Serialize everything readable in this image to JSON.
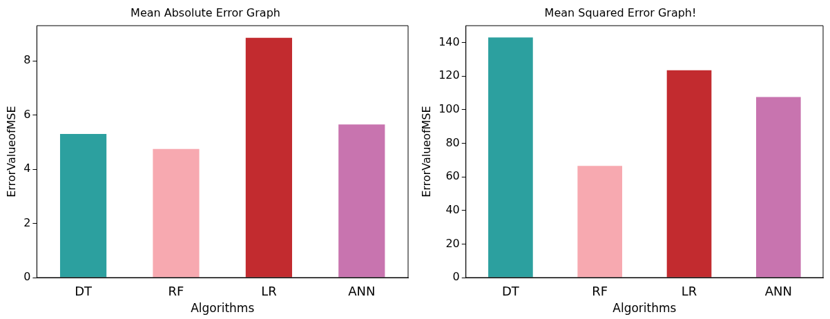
{
  "chart_data": [
    {
      "type": "bar",
      "title": "Mean Absolute Error Graph",
      "xlabel": "Algorithms",
      "ylabel": "ErrorValueofMSE",
      "categories": [
        "DT",
        "RF",
        "LR",
        "ANN"
      ],
      "values": [
        5.3,
        4.75,
        8.85,
        5.65
      ],
      "colors": [
        "#2ca09f",
        "#f7a9b0",
        "#c22b2f",
        "#c874af"
      ],
      "ylim": [
        0,
        9.3
      ],
      "yticks": [
        0,
        2,
        4,
        6,
        8
      ],
      "grid": false,
      "legend": false
    },
    {
      "type": "bar",
      "title": "Mean Squared Error Graph!",
      "xlabel": "Algorithms",
      "ylabel": "ErrorValueofMSE",
      "categories": [
        "DT",
        "RF",
        "LR",
        "ANN"
      ],
      "values": [
        143,
        66.5,
        123.5,
        107.5
      ],
      "colors": [
        "#2ca09f",
        "#f7a9b0",
        "#c22b2f",
        "#c874af"
      ],
      "ylim": [
        0,
        150
      ],
      "yticks": [
        0,
        20,
        40,
        60,
        80,
        100,
        120,
        140
      ],
      "grid": false,
      "legend": false
    }
  ]
}
